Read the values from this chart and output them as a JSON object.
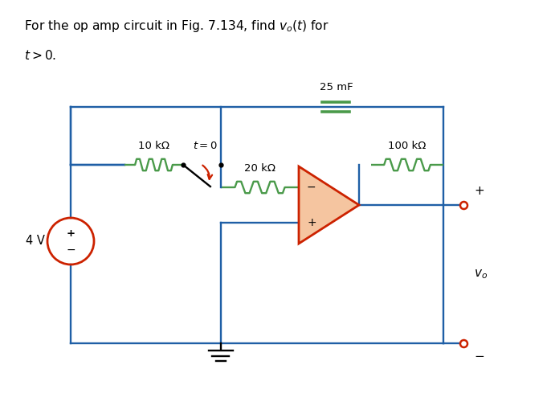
{
  "wire_color": "#1f5fa6",
  "resistor_color": "#4a9a4a",
  "capacitor_color": "#4a9a4a",
  "opamp_face": "#f5c5a0",
  "opamp_edge": "#cc2200",
  "source_edge": "#cc2200",
  "terminal_color": "#cc2200",
  "arrow_color": "#cc2200",
  "text_color": "#000000",
  "background": "#ffffff",
  "label_10k": "10 kΩ",
  "label_20k": "20 kΩ",
  "label_100k": "100 kΩ",
  "label_cap": "25 mF",
  "label_4v": "4 V",
  "label_t0": "$t = 0$",
  "label_vo": "$v_o$"
}
